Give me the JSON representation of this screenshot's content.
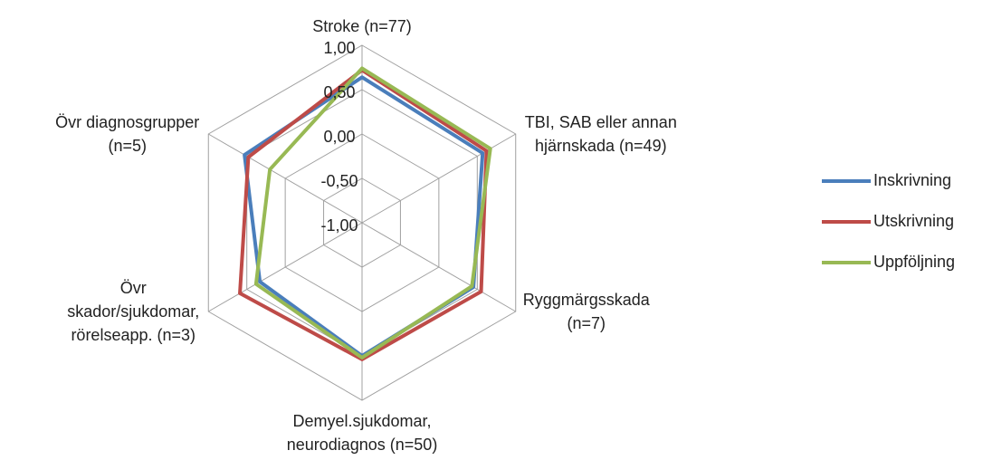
{
  "chart_data": {
    "type": "radar",
    "categories": [
      "Stroke (n=77)",
      "TBI, SAB eller annan\nhjärnskada (n=49)",
      "Ryggmärgsskada\n(n=7)",
      "Demyel.sjukdomar,\nneurodiagnos (n=50)",
      "Övr\nskador/sjukdomar,\nrörelseapp. (n=3)",
      "Övr diagnosgrupper\n(n=5)"
    ],
    "series": [
      {
        "name": "Inskrivning",
        "color": "#4a7ebb",
        "values": [
          0.64,
          0.57,
          0.45,
          0.5,
          0.33,
          0.53
        ]
      },
      {
        "name": "Utskrivning",
        "color": "#be4b48",
        "values": [
          0.72,
          0.62,
          0.55,
          0.54,
          0.59,
          0.48
        ]
      },
      {
        "name": "Uppföljning",
        "color": "#98b954",
        "values": [
          0.74,
          0.67,
          0.43,
          0.52,
          0.38,
          0.2
        ]
      }
    ],
    "ylim": [
      -1,
      1
    ],
    "yticks": [
      {
        "value": -1,
        "label": "-1,00"
      },
      {
        "value": -0.5,
        "label": "-0,50"
      },
      {
        "value": 0,
        "label": "0,00"
      },
      {
        "value": 0.5,
        "label": "0,50"
      },
      {
        "value": 1,
        "label": "1,00"
      }
    ],
    "grid": true,
    "legend": "right"
  }
}
